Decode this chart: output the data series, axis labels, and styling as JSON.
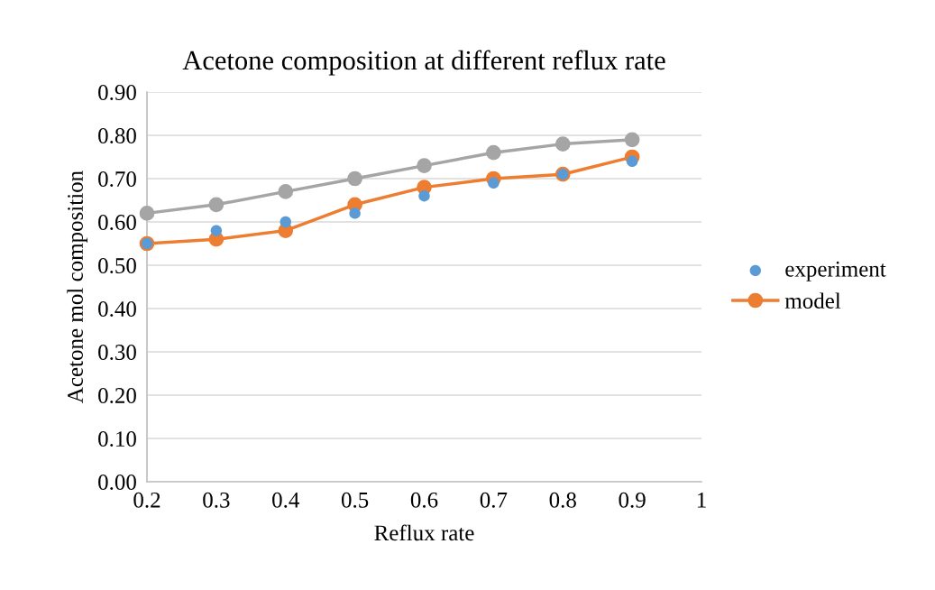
{
  "chart_data": {
    "type": "scatter",
    "title": "Acetone composition at different reflux rate",
    "xlabel": "Reflux rate",
    "ylabel": "Acetone mol composition",
    "x": [
      0.2,
      0.3,
      0.4,
      0.5,
      0.6,
      0.7,
      0.8,
      0.9
    ],
    "series": [
      {
        "name": "experiment",
        "color": "#5b9bd5",
        "values": [
          0.55,
          0.58,
          0.6,
          0.62,
          0.66,
          0.69,
          0.71,
          0.74
        ]
      },
      {
        "name": "model",
        "type": "line",
        "color": "#ed7d31",
        "values": [
          0.55,
          0.56,
          0.58,
          0.64,
          0.68,
          0.7,
          0.71,
          0.75
        ]
      },
      {
        "type": "line",
        "color": "#a5a5a5",
        "values": [
          0.62,
          0.64,
          0.67,
          0.7,
          0.73,
          0.76,
          0.78,
          0.79
        ]
      }
    ],
    "xlim": [
      0.2,
      1
    ],
    "xticks": [
      0.2,
      0.3,
      0.4,
      0.5,
      0.6,
      0.7,
      0.8,
      0.9,
      1
    ],
    "ylim": [
      0,
      0.9
    ],
    "yticks": [
      {
        "value": 0,
        "label": "0.00"
      },
      {
        "value": 0.1,
        "label": "0.10"
      },
      {
        "value": 0.2,
        "label": "0.20"
      },
      {
        "value": 0.3,
        "label": "0.30"
      },
      {
        "value": 0.4,
        "label": "0.40"
      },
      {
        "value": 0.5,
        "label": "0.50"
      },
      {
        "value": 0.6,
        "label": "0.60"
      },
      {
        "value": 0.7,
        "label": "0.70"
      },
      {
        "value": 0.8,
        "label": "0.80"
      },
      {
        "value": 0.9,
        "label": "0.90"
      }
    ],
    "grid": "y",
    "legend": "right",
    "marker": "circle"
  }
}
